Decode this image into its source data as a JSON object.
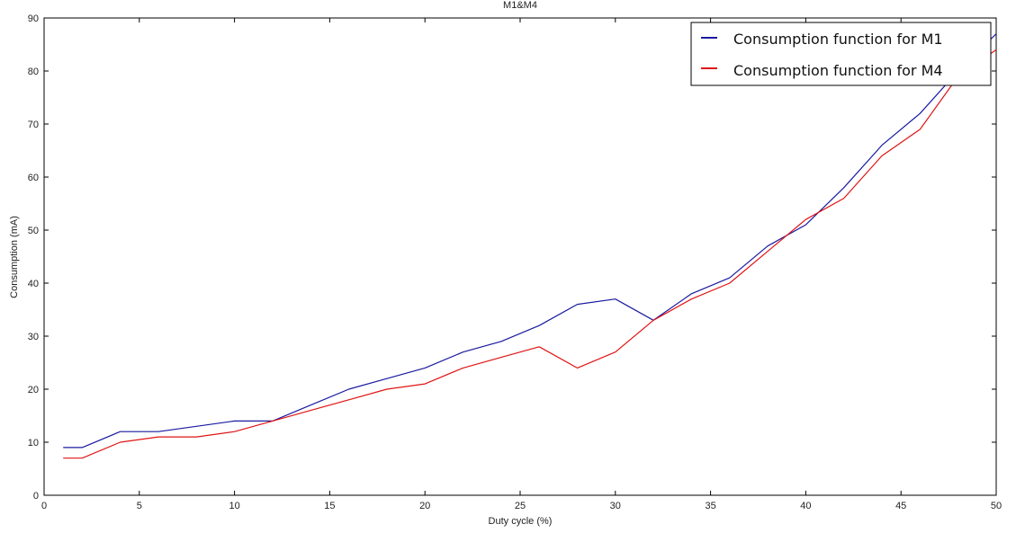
{
  "chart_data": {
    "type": "line",
    "title": "M1&M4",
    "xlabel": "Duty cycle (%)",
    "ylabel": "Consumption (mA)",
    "xlim": [
      0,
      50
    ],
    "ylim": [
      0,
      90
    ],
    "xticks": [
      0,
      5,
      10,
      15,
      20,
      25,
      30,
      35,
      40,
      45,
      50
    ],
    "yticks": [
      0,
      10,
      20,
      30,
      40,
      50,
      60,
      70,
      80,
      90
    ],
    "grid": false,
    "legend_position": "top-right",
    "series": [
      {
        "name": "Consumption function for M1",
        "color": "#1a1aa0",
        "points": [
          [
            1,
            9
          ],
          [
            2,
            9
          ],
          [
            4,
            12
          ],
          [
            6,
            12
          ],
          [
            8,
            13
          ],
          [
            10,
            14
          ],
          [
            12,
            14
          ],
          [
            14,
            17
          ],
          [
            16,
            20
          ],
          [
            18,
            22
          ],
          [
            20,
            24
          ],
          [
            22,
            27
          ],
          [
            24,
            29
          ],
          [
            26,
            32
          ],
          [
            28,
            36
          ],
          [
            30,
            37
          ],
          [
            32,
            33
          ],
          [
            34,
            38
          ],
          [
            36,
            41
          ],
          [
            38,
            47
          ],
          [
            40,
            51
          ],
          [
            42,
            58
          ],
          [
            44,
            66
          ],
          [
            46,
            72
          ],
          [
            48,
            80
          ],
          [
            50,
            87
          ]
        ]
      },
      {
        "name": "Consumption function for M4",
        "color": "#e01414",
        "points": [
          [
            1,
            7
          ],
          [
            2,
            7
          ],
          [
            4,
            10
          ],
          [
            6,
            11
          ],
          [
            8,
            11
          ],
          [
            10,
            12
          ],
          [
            12,
            14
          ],
          [
            14,
            16
          ],
          [
            16,
            18
          ],
          [
            18,
            20
          ],
          [
            20,
            21
          ],
          [
            22,
            24
          ],
          [
            24,
            26
          ],
          [
            26,
            28
          ],
          [
            28,
            24
          ],
          [
            30,
            27
          ],
          [
            32,
            33
          ],
          [
            34,
            37
          ],
          [
            36,
            40
          ],
          [
            38,
            46
          ],
          [
            40,
            52
          ],
          [
            42,
            56
          ],
          [
            44,
            64
          ],
          [
            46,
            69
          ],
          [
            48,
            79
          ],
          [
            50,
            84
          ]
        ]
      }
    ]
  }
}
